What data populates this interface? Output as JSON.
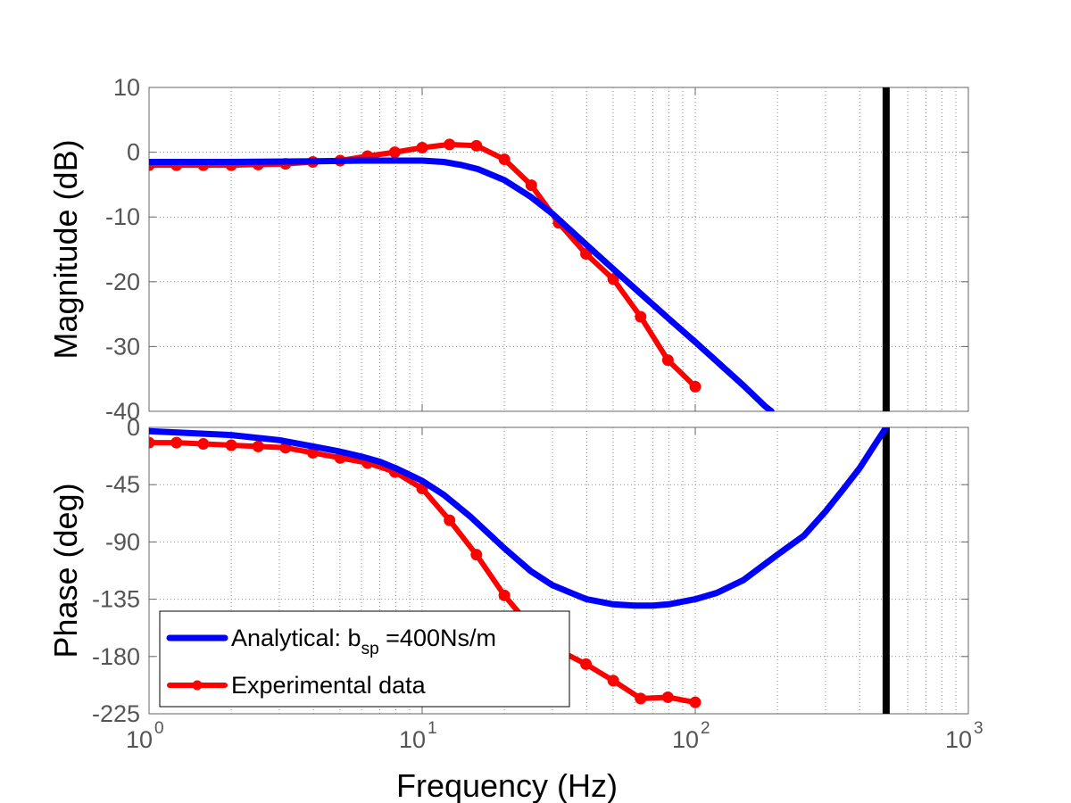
{
  "chart_data": {
    "type": "line",
    "xlabel": "Frequency  (Hz)",
    "x_scale": "log",
    "xlim": [
      1,
      1000
    ],
    "x_ticks": [
      1,
      10,
      100,
      1000
    ],
    "x_tick_labels": [
      {
        "base": "10",
        "exp": "0"
      },
      {
        "base": "10",
        "exp": "1"
      },
      {
        "base": "10",
        "exp": "2"
      },
      {
        "base": "10",
        "exp": "3"
      }
    ],
    "grid": true,
    "vertical_line": {
      "x": 500,
      "color": "#000000"
    },
    "legend": {
      "placement": "lower-left of bottom panel",
      "entries": [
        {
          "series": "analytical",
          "prefix": "Analytical: b",
          "subscript": "sp",
          "suffix": " =400Ns/m"
        },
        {
          "series": "experimental",
          "text": "Experimental data"
        }
      ]
    },
    "series_styles": {
      "analytical": {
        "color": "#0000ff",
        "marker": "none"
      },
      "experimental": {
        "color": "#ff0000",
        "marker": "star"
      }
    },
    "panels": [
      {
        "id": "magnitude",
        "ylabel": "Magnitude (dB)",
        "ylim": [
          -40,
          10
        ],
        "yticks": [
          10,
          0,
          -10,
          -20,
          -30,
          -40
        ],
        "series": [
          {
            "key": "analytical",
            "points": [
              [
                1,
                -1.5
              ],
              [
                2,
                -1.5
              ],
              [
                4,
                -1.4
              ],
              [
                6,
                -1.3
              ],
              [
                8,
                -1.3
              ],
              [
                10,
                -1.3
              ],
              [
                12,
                -1.5
              ],
              [
                14,
                -2.0
              ],
              [
                16,
                -2.6
              ],
              [
                20,
                -4.3
              ],
              [
                25,
                -6.9
              ],
              [
                30,
                -9.5
              ],
              [
                40,
                -14.3
              ],
              [
                50,
                -18.0
              ],
              [
                60,
                -21.0
              ],
              [
                80,
                -25.7
              ],
              [
                100,
                -29.3
              ],
              [
                120,
                -32.3
              ],
              [
                150,
                -36.0
              ],
              [
                170,
                -38.2
              ],
              [
                180,
                -39.2
              ],
              [
                190,
                -40.0
              ]
            ]
          },
          {
            "key": "experimental",
            "points": [
              [
                1,
                -2.0
              ],
              [
                1.26,
                -2.0
              ],
              [
                1.58,
                -2.0
              ],
              [
                2.0,
                -2.0
              ],
              [
                2.51,
                -1.9
              ],
              [
                3.16,
                -1.8
              ],
              [
                3.98,
                -1.5
              ],
              [
                5.01,
                -1.3
              ],
              [
                6.31,
                -0.6
              ],
              [
                7.94,
                0.0
              ],
              [
                10.0,
                0.7
              ],
              [
                12.6,
                1.2
              ],
              [
                15.8,
                1.0
              ],
              [
                20.0,
                -1.1
              ],
              [
                25.1,
                -5.1
              ],
              [
                31.6,
                -10.9
              ],
              [
                39.8,
                -15.7
              ],
              [
                50.1,
                -19.6
              ],
              [
                63.1,
                -25.4
              ],
              [
                79.4,
                -32.1
              ],
              [
                100.0,
                -36.2
              ]
            ]
          }
        ]
      },
      {
        "id": "phase",
        "ylabel": "Phase (deg)",
        "ylim": [
          -225,
          0
        ],
        "yticks": [
          0,
          -45,
          -90,
          -135,
          -180,
          -225
        ],
        "series": [
          {
            "key": "analytical",
            "points": [
              [
                1,
                -3
              ],
              [
                2,
                -6
              ],
              [
                3,
                -10
              ],
              [
                4,
                -15
              ],
              [
                5,
                -19
              ],
              [
                6,
                -23
              ],
              [
                7,
                -27
              ],
              [
                8,
                -32
              ],
              [
                10,
                -42
              ],
              [
                12,
                -53
              ],
              [
                15,
                -70
              ],
              [
                20,
                -95
              ],
              [
                25,
                -113
              ],
              [
                30,
                -124
              ],
              [
                40,
                -135
              ],
              [
                50,
                -139
              ],
              [
                60,
                -140
              ],
              [
                70,
                -140
              ],
              [
                80,
                -139
              ],
              [
                100,
                -135
              ],
              [
                120,
                -130
              ],
              [
                150,
                -120
              ],
              [
                200,
                -100
              ],
              [
                250,
                -85
              ],
              [
                300,
                -66
              ],
              [
                350,
                -48
              ],
              [
                400,
                -32
              ],
              [
                450,
                -15
              ],
              [
                500,
                0
              ]
            ]
          },
          {
            "key": "experimental",
            "points": [
              [
                1,
                -12
              ],
              [
                1.26,
                -12
              ],
              [
                1.58,
                -13
              ],
              [
                2.0,
                -14
              ],
              [
                2.51,
                -15
              ],
              [
                3.16,
                -16
              ],
              [
                3.98,
                -20
              ],
              [
                5.01,
                -24
              ],
              [
                6.31,
                -28
              ],
              [
                7.94,
                -35
              ],
              [
                10.0,
                -48
              ],
              [
                12.6,
                -73
              ],
              [
                15.8,
                -100
              ],
              [
                20.0,
                -132
              ],
              [
                25.1,
                -157
              ],
              [
                31.6,
                -175
              ],
              [
                39.8,
                -186
              ],
              [
                50.1,
                -199
              ],
              [
                63.1,
                -213
              ],
              [
                79.4,
                -212
              ],
              [
                100.0,
                -216
              ]
            ]
          }
        ]
      }
    ]
  }
}
